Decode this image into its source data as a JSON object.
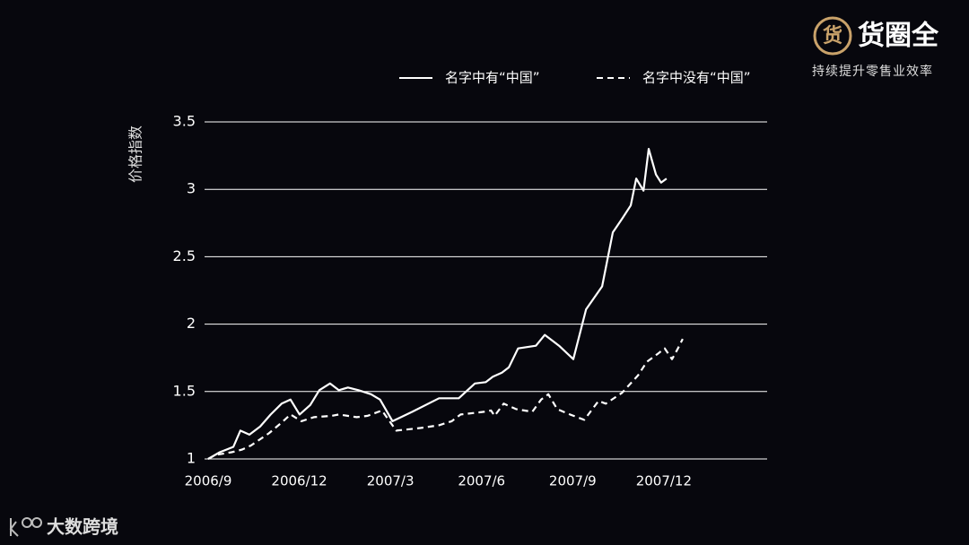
{
  "brand": {
    "icon": "货",
    "name": "货圈全",
    "slogan": "持续提升零售业效率"
  },
  "footer": {
    "name": "大数跨境"
  },
  "chart_data": {
    "type": "line",
    "y_label": "价格指数",
    "xlim": [
      0,
      18.4
    ],
    "xticks": [
      {
        "value": 0,
        "label": "2006/9"
      },
      {
        "value": 3,
        "label": "2006/12"
      },
      {
        "value": 6,
        "label": "2007/3"
      },
      {
        "value": 9,
        "label": "2007/6"
      },
      {
        "value": 12,
        "label": "2007/9"
      },
      {
        "value": 15,
        "label": "2007/12"
      }
    ],
    "ylim": [
      1,
      3.5
    ],
    "yticks": [
      1,
      1.5,
      2,
      2.5,
      3,
      3.5
    ],
    "grid": true,
    "series": [
      {
        "name": "名字中有“中国”",
        "color": "#ffffff",
        "dash": false,
        "x": [
          0,
          0.38,
          0.83,
          1.06,
          1.36,
          1.71,
          2.06,
          2.42,
          2.71,
          3.01,
          3.36,
          3.66,
          4.01,
          4.3,
          4.6,
          4.95,
          5.36,
          5.66,
          6.07,
          6.72,
          7.6,
          8.25,
          8.78,
          9.14,
          9.37,
          9.67,
          9.9,
          10.2,
          10.79,
          11.08,
          11.55,
          12.02,
          12.44,
          12.97,
          13.32,
          13.62,
          13.91,
          14.09,
          14.33,
          14.5,
          14.74,
          14.91,
          15.09
        ],
        "values": [
          1,
          1.05,
          1.09,
          1.21,
          1.18,
          1.24,
          1.33,
          1.41,
          1.44,
          1.33,
          1.4,
          1.51,
          1.56,
          1.51,
          1.53,
          1.51,
          1.48,
          1.44,
          1.28,
          1.35,
          1.45,
          1.45,
          1.56,
          1.57,
          1.61,
          1.64,
          1.68,
          1.82,
          1.84,
          1.92,
          1.84,
          1.74,
          2.11,
          2.28,
          2.68,
          2.78,
          2.88,
          3.08,
          2.99,
          3.3,
          3.11,
          3.05,
          3.08
        ]
      },
      {
        "name": "名字中没有“中国”",
        "color": "#ffffff",
        "dash": true,
        "x": [
          0,
          0.24,
          0.77,
          1.12,
          1.41,
          2,
          2.42,
          2.71,
          3.07,
          3.48,
          4.07,
          4.3,
          4.89,
          5.25,
          5.72,
          6.19,
          7.01,
          7.6,
          8.02,
          8.31,
          9.08,
          9.31,
          9.43,
          9.73,
          10.14,
          10.67,
          10.96,
          11.2,
          11.49,
          11.91,
          12.38,
          12.85,
          13.09,
          13.62,
          14.15,
          14.44,
          14.8,
          15.03,
          15.27,
          15.44,
          15.62
        ],
        "values": [
          1,
          1.03,
          1.05,
          1.07,
          1.1,
          1.19,
          1.27,
          1.33,
          1.28,
          1.31,
          1.32,
          1.33,
          1.31,
          1.32,
          1.36,
          1.21,
          1.23,
          1.25,
          1.28,
          1.33,
          1.35,
          1.36,
          1.32,
          1.41,
          1.37,
          1.35,
          1.44,
          1.48,
          1.37,
          1.33,
          1.29,
          1.43,
          1.41,
          1.49,
          1.62,
          1.72,
          1.78,
          1.82,
          1.74,
          1.81,
          1.89
        ]
      }
    ]
  }
}
